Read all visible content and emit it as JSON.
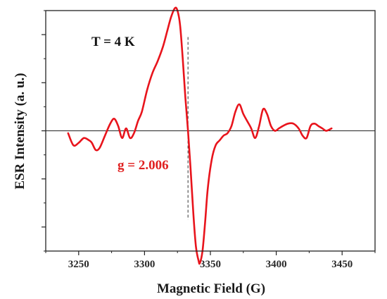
{
  "chart_data": {
    "type": "line",
    "title": "",
    "xlabel": "Magnetic Field (G)",
    "ylabel": "ESR Intensity (a. u.)",
    "xlim": [
      3225,
      3475
    ],
    "ylim": [
      -2.5,
      2.5
    ],
    "xticks": [
      3250,
      3300,
      3350,
      3400,
      3450
    ],
    "yticks_unlabeled": true,
    "grid": false,
    "series": [
      {
        "color": "#e8141c",
        "x": [
          3242,
          3246,
          3250,
          3254,
          3258,
          3260,
          3263,
          3266,
          3270,
          3274,
          3277,
          3280,
          3283,
          3286,
          3289,
          3292,
          3295,
          3298,
          3302,
          3306,
          3310,
          3314,
          3317,
          3320,
          3323,
          3325,
          3327,
          3329,
          3331,
          3333,
          3335,
          3337,
          3339,
          3341,
          3342,
          3344,
          3346,
          3348,
          3351,
          3354,
          3357,
          3360,
          3363,
          3366,
          3369,
          3372,
          3375,
          3378,
          3381,
          3384,
          3387,
          3390,
          3393,
          3396,
          3399,
          3402,
          3405,
          3409,
          3413,
          3417,
          3420,
          3423,
          3426,
          3429,
          3432,
          3435,
          3438,
          3442
        ],
        "y": [
          -0.05,
          -0.3,
          -0.25,
          -0.15,
          -0.2,
          -0.25,
          -0.4,
          -0.35,
          -0.1,
          0.15,
          0.25,
          0.1,
          -0.15,
          0.05,
          -0.15,
          -0.05,
          0.2,
          0.4,
          0.85,
          1.2,
          1.45,
          1.75,
          2.05,
          2.35,
          2.55,
          2.5,
          2.2,
          1.5,
          0.7,
          0.0,
          -0.8,
          -1.7,
          -2.4,
          -2.7,
          -2.75,
          -2.5,
          -1.9,
          -1.2,
          -0.6,
          -0.3,
          -0.2,
          -0.1,
          -0.05,
          0.1,
          0.4,
          0.55,
          0.35,
          0.2,
          0.05,
          -0.15,
          0.1,
          0.45,
          0.35,
          0.1,
          0.0,
          0.05,
          0.1,
          0.15,
          0.15,
          0.05,
          -0.1,
          -0.15,
          0.1,
          0.15,
          0.1,
          0.05,
          0.0,
          0.05
        ]
      }
    ],
    "baseline_y": 0,
    "marker_line_x": 3333,
    "annotations": [
      {
        "text": "T = 4 K",
        "color": "#111111"
      },
      {
        "text": "g = 2.006",
        "color": "#e02020"
      }
    ]
  }
}
